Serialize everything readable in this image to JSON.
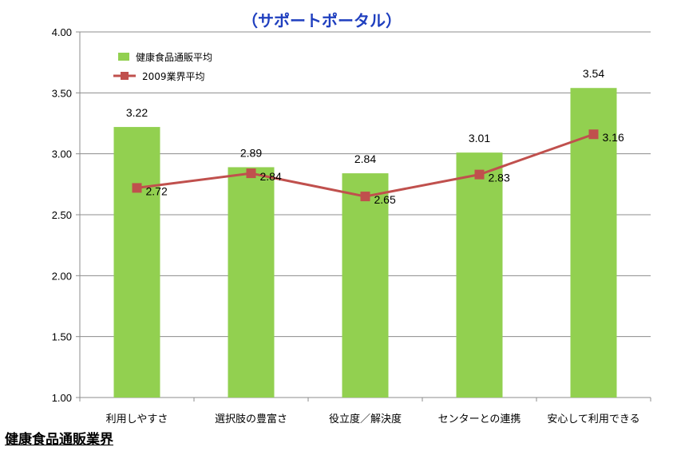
{
  "footer_text": "健康食品通販業界",
  "chart_data": {
    "type": "bar",
    "title": "（サポートポータル）",
    "xlabel": "",
    "ylabel": "",
    "ylim": [
      1.0,
      4.0
    ],
    "yticks": [
      "1.00",
      "1.50",
      "2.00",
      "2.50",
      "3.00",
      "3.50",
      "4.00"
    ],
    "grid": true,
    "legend_position": "top-left",
    "categories": [
      "利用しやすさ",
      "選択肢の豊富さ",
      "役立度／解決度",
      "センターとの連携",
      "安心して利用できる"
    ],
    "series": [
      {
        "name": "健康食品通販平均",
        "type": "bar",
        "color": "#92d050",
        "values": [
          3.22,
          2.89,
          2.84,
          3.01,
          3.54
        ],
        "labels": [
          "3.22",
          "2.89",
          "2.84",
          "3.01",
          "3.54"
        ]
      },
      {
        "name": "2009業界平均",
        "type": "line",
        "color": "#c0504d",
        "values": [
          2.72,
          2.84,
          2.65,
          2.83,
          3.16
        ],
        "labels": [
          "2.72",
          "2.84",
          "2.65",
          "2.83",
          "3.16"
        ]
      }
    ]
  }
}
